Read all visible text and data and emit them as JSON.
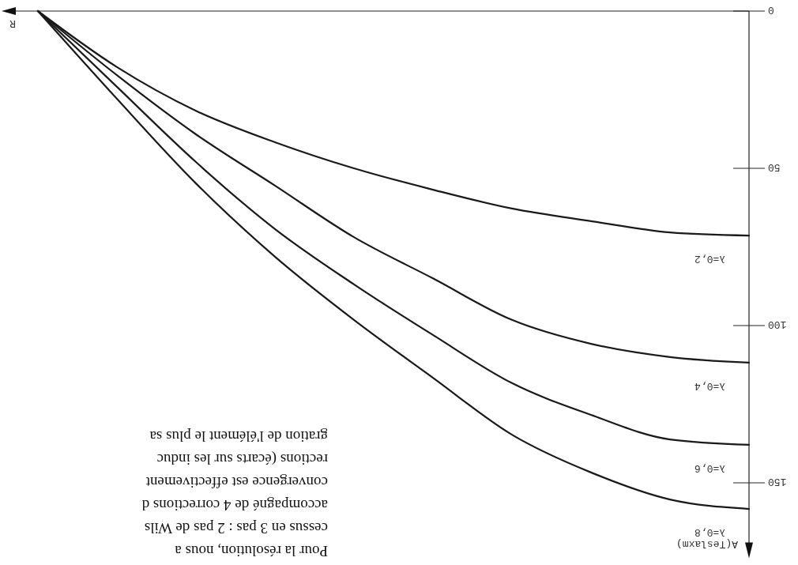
{
  "chart_data": {
    "type": "line",
    "xlabel": "R",
    "ylabel": "A(Teslaxm)",
    "categories": [
      null,
      null,
      null,
      null,
      null,
      null,
      null,
      null,
      null,
      null
    ],
    "ylim": [
      172,
      0
    ],
    "yticks": [
      0,
      50,
      100,
      150
    ],
    "tick_labels": "y",
    "series": [
      {
        "name": "λ=0,2",
        "color": "#1a1a1a",
        "values": [
          0,
          17.8,
          31.7,
          41.7,
          50,
          56.8,
          62.8,
          66.8,
          70.4,
          71.4
        ]
      },
      {
        "name": "λ=0,4",
        "color": "#1a1a1a",
        "values": [
          0,
          20.4,
          39.2,
          55.5,
          71.9,
          85,
          98.2,
          105.8,
          110,
          111.8
        ]
      },
      {
        "name": "λ=0,6",
        "color": "#1a1a1a",
        "values": [
          0,
          24.1,
          48,
          69.3,
          86.9,
          103,
          118.3,
          128.4,
          136.2,
          137.9
        ]
      },
      {
        "name": "λ=0,8",
        "color": "#1a1a1a",
        "values": [
          0,
          27.9,
          54.8,
          78.1,
          98.2,
          116.6,
          134.7,
          146.7,
          155.3,
          158.3
        ]
      }
    ],
    "annotations": [
      "Pour la résolution, nous a",
      "cessus en 3 pas : 2 pas de Wils",
      "accompagné de 4 corrections d",
      "convergence est effectivement",
      "rections (écarts sur les induc",
      "gration de l'élément le plus sa"
    ]
  }
}
